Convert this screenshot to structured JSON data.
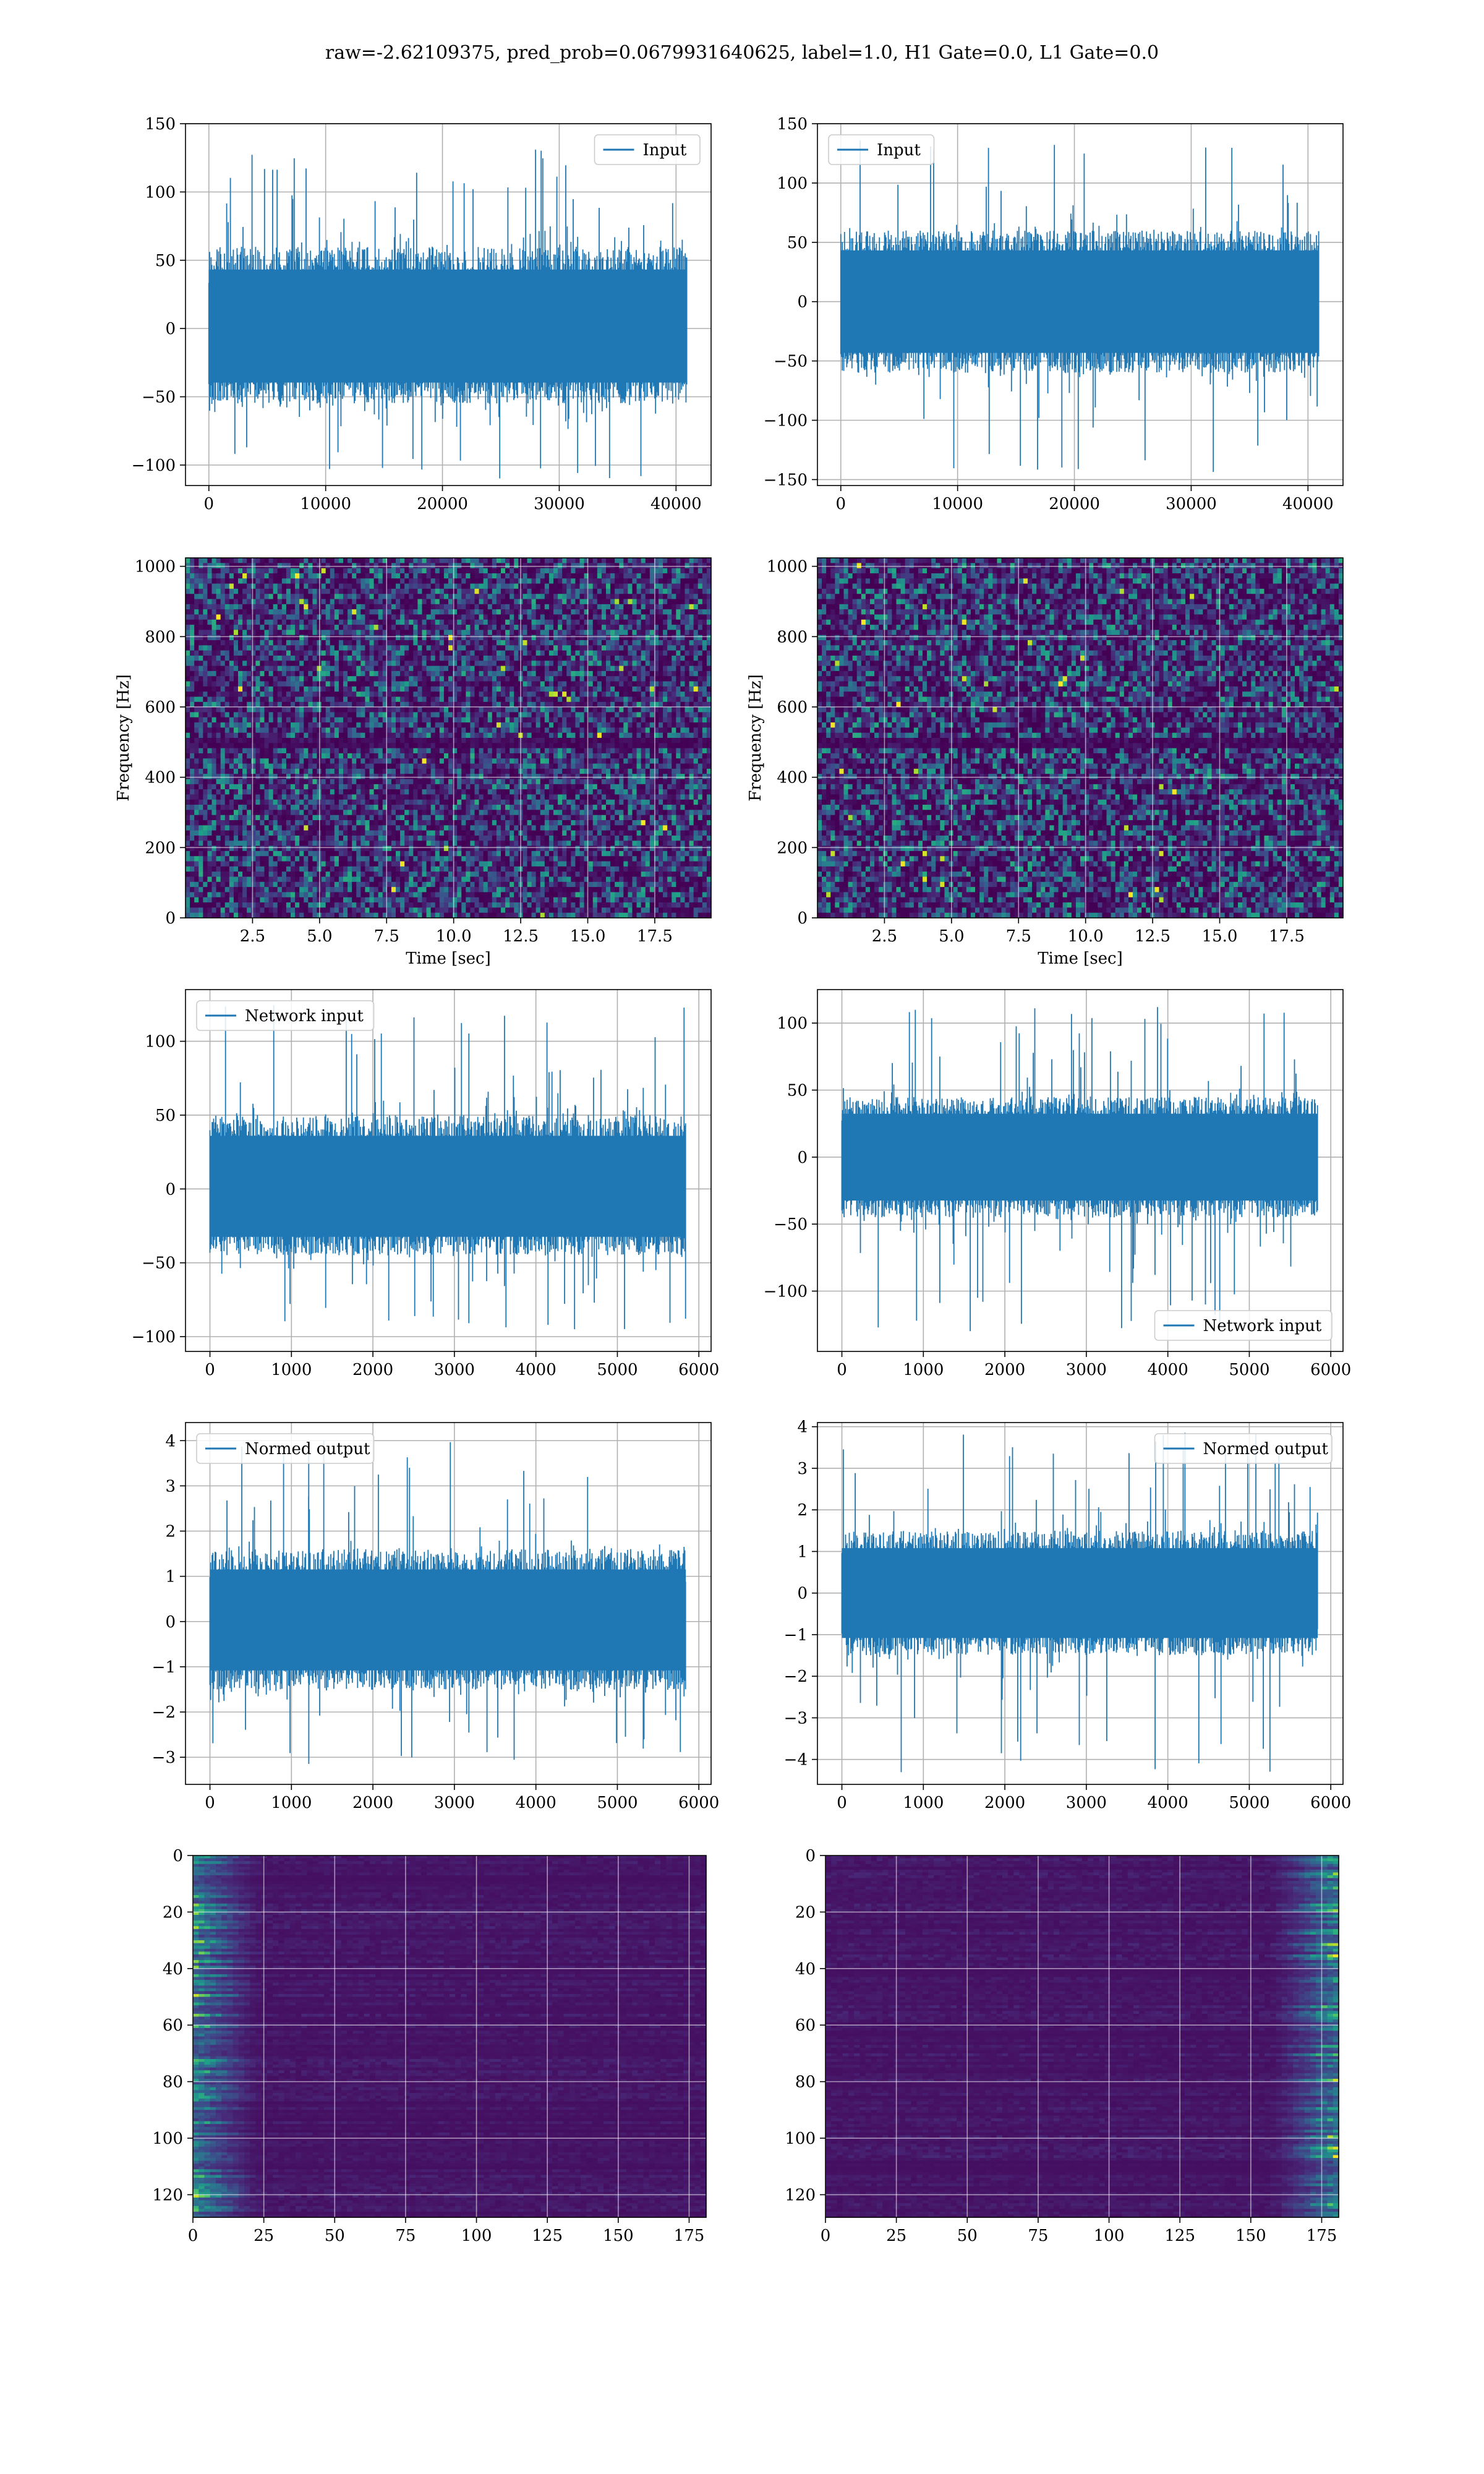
{
  "suptitle": "raw=-2.62109375, pred_prob=0.0679931640625, label=1.0, H1 Gate=0.0, L1 Gate=0.0",
  "colors": {
    "line": "#1f77b4",
    "grid": "#b0b0b0",
    "viridis_dark": "#440154",
    "viridis_mid": "#21918c",
    "viridis_bright": "#fde725"
  },
  "chart_data": [
    {
      "id": "input-h1",
      "type": "line",
      "legend": "Input",
      "legend_loc": "upper right",
      "xlim": [
        -2000,
        43000
      ],
      "ylim": [
        -115,
        150
      ],
      "xticks": [
        0,
        10000,
        20000,
        30000,
        40000
      ],
      "yticks": [
        -100,
        -50,
        0,
        50,
        100,
        150
      ],
      "grid": true,
      "series": [
        {
          "name": "Input",
          "x_range": [
            0,
            40960
          ],
          "envelope_typical": [
            -55,
            60
          ],
          "envelope_extreme": [
            -110,
            135
          ]
        }
      ]
    },
    {
      "id": "input-l1",
      "type": "line",
      "legend": "Input",
      "legend_loc": "upper left",
      "xlim": [
        -2000,
        43000
      ],
      "ylim": [
        -155,
        150
      ],
      "xticks": [
        0,
        10000,
        20000,
        30000,
        40000
      ],
      "yticks": [
        -150,
        -100,
        -50,
        0,
        50,
        100,
        150
      ],
      "grid": true,
      "series": [
        {
          "name": "Input",
          "x_range": [
            0,
            40960
          ],
          "envelope_typical": [
            -60,
            60
          ],
          "envelope_extreme": [
            -145,
            137
          ]
        }
      ]
    },
    {
      "id": "spectrogram-h1",
      "type": "heatmap",
      "xlabel": "Time [sec]",
      "ylabel": "Frequency [Hz]",
      "xlim": [
        0,
        19.6
      ],
      "ylim": [
        0,
        1024
      ],
      "xticks": [
        2.5,
        5.0,
        7.5,
        10.0,
        12.5,
        15.0,
        17.5
      ],
      "yticks": [
        0,
        200,
        400,
        600,
        800,
        1000
      ],
      "grid": true,
      "colormap": "viridis"
    },
    {
      "id": "spectrogram-l1",
      "type": "heatmap",
      "xlabel": "Time [sec]",
      "ylabel": "Frequency [Hz]",
      "xlim": [
        0,
        19.6
      ],
      "ylim": [
        0,
        1024
      ],
      "xticks": [
        2.5,
        5.0,
        7.5,
        10.0,
        12.5,
        15.0,
        17.5
      ],
      "yticks": [
        0,
        200,
        400,
        600,
        800,
        1000
      ],
      "grid": true,
      "colormap": "viridis"
    },
    {
      "id": "network-input-h1",
      "type": "line",
      "legend": "Network input",
      "legend_loc": "upper left",
      "xlim": [
        -300,
        6150
      ],
      "ylim": [
        -110,
        135
      ],
      "xticks": [
        0,
        1000,
        2000,
        3000,
        4000,
        5000,
        6000
      ],
      "yticks": [
        -100,
        -50,
        0,
        50,
        100
      ],
      "grid": true,
      "series": [
        {
          "name": "Network input",
          "x_range": [
            0,
            5840
          ],
          "envelope_typical": [
            -45,
            50
          ],
          "envelope_extreme": [
            -95,
            125
          ]
        }
      ]
    },
    {
      "id": "network-input-l1",
      "type": "line",
      "legend": "Network input",
      "legend_loc": "lower right",
      "xlim": [
        -300,
        6150
      ],
      "ylim": [
        -145,
        125
      ],
      "xticks": [
        0,
        1000,
        2000,
        3000,
        4000,
        5000,
        6000
      ],
      "yticks": [
        -100,
        -50,
        0,
        50,
        100
      ],
      "grid": true,
      "series": [
        {
          "name": "Network input",
          "x_range": [
            0,
            5840
          ],
          "envelope_typical": [
            -45,
            45
          ],
          "envelope_extreme": [
            -130,
            113
          ]
        }
      ]
    },
    {
      "id": "normed-output-h1",
      "type": "line",
      "legend": "Normed output",
      "legend_loc": "upper left",
      "xlim": [
        -300,
        6150
      ],
      "ylim": [
        -3.6,
        4.4
      ],
      "xticks": [
        0,
        1000,
        2000,
        3000,
        4000,
        5000,
        6000
      ],
      "yticks": [
        -3,
        -2,
        -1,
        0,
        1,
        2,
        3,
        4
      ],
      "grid": true,
      "series": [
        {
          "name": "Normed output",
          "x_range": [
            0,
            5840
          ],
          "envelope_typical": [
            -1.5,
            1.6
          ],
          "envelope_extreme": [
            -3.2,
            4.05
          ]
        }
      ]
    },
    {
      "id": "normed-output-l1",
      "type": "line",
      "legend": "Normed output",
      "legend_loc": "upper right",
      "xlim": [
        -300,
        6150
      ],
      "ylim": [
        -4.6,
        4.1
      ],
      "xticks": [
        0,
        1000,
        2000,
        3000,
        4000,
        5000,
        6000
      ],
      "yticks": [
        -4,
        -3,
        -2,
        -1,
        0,
        1,
        2,
        3,
        4
      ],
      "grid": true,
      "series": [
        {
          "name": "Normed output",
          "x_range": [
            0,
            5840
          ],
          "envelope_typical": [
            -1.5,
            1.5
          ],
          "envelope_extreme": [
            -4.4,
            3.9
          ]
        }
      ]
    },
    {
      "id": "feature-map-h1",
      "type": "heatmap",
      "xlim": [
        0,
        181
      ],
      "ylim": [
        128,
        0
      ],
      "xticks": [
        0,
        25,
        50,
        75,
        100,
        125,
        150,
        175
      ],
      "yticks": [
        0,
        20,
        40,
        60,
        80,
        100,
        120
      ],
      "grid": true,
      "colormap": "viridis",
      "bright_region": "left"
    },
    {
      "id": "feature-map-l1",
      "type": "heatmap",
      "xlim": [
        0,
        181
      ],
      "ylim": [
        128,
        0
      ],
      "xticks": [
        0,
        25,
        50,
        75,
        100,
        125,
        150,
        175
      ],
      "yticks": [
        0,
        20,
        40,
        60,
        80,
        100,
        120
      ],
      "grid": true,
      "colormap": "viridis",
      "bright_region": "right"
    }
  ]
}
